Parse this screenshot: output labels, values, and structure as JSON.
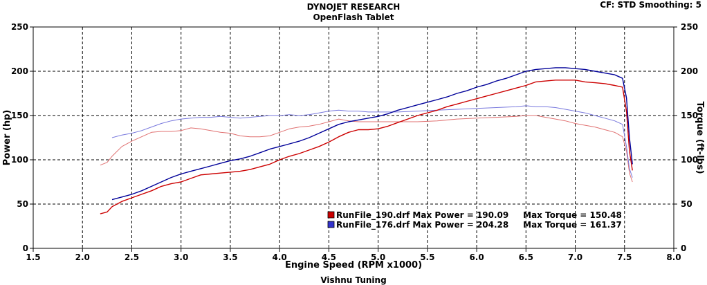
{
  "header": {
    "title": "DYNOJET RESEARCH",
    "subtitle": "OpenFlash Tablet",
    "cf_smoothing": "CF: STD  Smoothing: 5"
  },
  "footer": {
    "text": "Vishnu Tuning"
  },
  "colors": {
    "run190": "#cc0000",
    "run176": "#000099",
    "run190_light": "#e07070",
    "run176_light": "#7777dd"
  },
  "chart_data": {
    "type": "line",
    "xlabel": "Engine Speed (RPM x1000)",
    "ylabel": "Power (hp)",
    "y2label": "Torque (ft-lbs)",
    "xlim": [
      1.5,
      8.0
    ],
    "ylim": [
      0,
      250
    ],
    "y2lim": [
      0,
      250
    ],
    "xticks": [
      "1.5",
      "2.0",
      "2.5",
      "3.0",
      "3.5",
      "4.0",
      "4.5",
      "5.0",
      "5.5",
      "6.0",
      "6.5",
      "7.0",
      "7.5",
      "8.0"
    ],
    "yticks": [
      "0",
      "50",
      "100",
      "150",
      "200",
      "250"
    ],
    "y2ticks": [
      "0",
      "50",
      "100",
      "150",
      "200",
      "250"
    ],
    "grid": true,
    "legend": [
      {
        "text": "RunFile_190.drf Max Power = 190.09     Max Torque = 150.48",
        "color": "#cc0000"
      },
      {
        "text": "RunFile_176.drf Max Power = 204.28     Max Torque = 161.37",
        "color": "#3333cc"
      }
    ],
    "series": [
      {
        "run": "RunFile_190.drf",
        "quantity": "power",
        "color": "#cc0000",
        "width": 1.4,
        "x": [
          2.18,
          2.25,
          2.3,
          2.4,
          2.5,
          2.6,
          2.7,
          2.8,
          2.9,
          3.0,
          3.1,
          3.2,
          3.3,
          3.4,
          3.5,
          3.6,
          3.7,
          3.8,
          3.9,
          4.0,
          4.1,
          4.2,
          4.3,
          4.4,
          4.5,
          4.6,
          4.7,
          4.8,
          4.9,
          5.0,
          5.1,
          5.2,
          5.3,
          5.4,
          5.5,
          5.6,
          5.7,
          5.8,
          5.9,
          6.0,
          6.1,
          6.2,
          6.3,
          6.4,
          6.5,
          6.6,
          6.7,
          6.8,
          6.9,
          7.0,
          7.1,
          7.2,
          7.3,
          7.4,
          7.48,
          7.52,
          7.55,
          7.58
        ],
        "y": [
          39,
          41,
          47,
          53,
          57,
          61,
          65,
          70,
          73,
          75,
          79,
          83,
          84,
          85,
          86,
          87,
          89,
          92,
          95,
          100,
          104,
          107,
          111,
          115,
          120,
          126,
          131,
          134,
          134,
          135,
          138,
          142,
          146,
          150,
          153,
          156,
          160,
          163,
          166,
          169,
          172,
          175,
          178,
          181,
          184,
          188,
          189,
          190,
          190,
          190,
          188,
          187,
          186,
          184,
          182,
          155,
          110,
          88
        ]
      },
      {
        "run": "RunFile_176.drf",
        "quantity": "power",
        "color": "#000099",
        "width": 1.4,
        "x": [
          2.3,
          2.4,
          2.5,
          2.6,
          2.7,
          2.8,
          2.9,
          3.0,
          3.1,
          3.2,
          3.3,
          3.4,
          3.5,
          3.6,
          3.7,
          3.8,
          3.9,
          4.0,
          4.1,
          4.2,
          4.3,
          4.4,
          4.5,
          4.6,
          4.7,
          4.8,
          4.9,
          5.0,
          5.1,
          5.2,
          5.3,
          5.4,
          5.5,
          5.6,
          5.7,
          5.8,
          5.9,
          6.0,
          6.1,
          6.2,
          6.3,
          6.4,
          6.5,
          6.6,
          6.7,
          6.8,
          6.9,
          7.0,
          7.1,
          7.2,
          7.3,
          7.4,
          7.48,
          7.52,
          7.55,
          7.58
        ],
        "y": [
          55,
          58,
          61,
          65,
          70,
          75,
          80,
          84,
          87,
          90,
          93,
          96,
          99,
          101,
          104,
          108,
          112,
          115,
          118,
          121,
          125,
          130,
          135,
          140,
          143,
          145,
          147,
          149,
          152,
          156,
          159,
          162,
          165,
          168,
          171,
          175,
          178,
          182,
          185,
          189,
          192,
          196,
          200,
          202,
          203,
          204,
          204,
          203,
          202,
          200,
          198,
          196,
          192,
          170,
          125,
          95
        ]
      },
      {
        "run": "RunFile_190.drf",
        "quantity": "torque",
        "color": "#e07070",
        "width": 1.0,
        "x": [
          2.18,
          2.25,
          2.3,
          2.4,
          2.5,
          2.6,
          2.7,
          2.8,
          2.9,
          3.0,
          3.1,
          3.2,
          3.3,
          3.4,
          3.5,
          3.6,
          3.7,
          3.8,
          3.9,
          4.0,
          4.1,
          4.2,
          4.3,
          4.4,
          4.5,
          4.6,
          4.7,
          4.8,
          4.9,
          5.0,
          5.2,
          5.4,
          5.6,
          5.8,
          6.0,
          6.2,
          6.4,
          6.5,
          6.6,
          6.7,
          6.8,
          6.9,
          7.0,
          7.1,
          7.2,
          7.3,
          7.4,
          7.48,
          7.52,
          7.55,
          7.58
        ],
        "y": [
          94,
          97,
          104,
          115,
          121,
          126,
          131,
          132,
          132,
          133,
          136,
          135,
          133,
          131,
          130,
          127,
          126,
          126,
          127,
          131,
          135,
          137,
          138,
          140,
          143,
          146,
          144,
          143,
          143,
          143,
          143,
          143,
          144,
          146,
          147,
          148,
          149,
          150,
          150,
          148,
          146,
          144,
          141,
          139,
          137,
          134,
          131,
          126,
          110,
          85,
          75
        ]
      },
      {
        "run": "RunFile_176.drf",
        "quantity": "torque",
        "color": "#7777dd",
        "width": 1.0,
        "x": [
          2.3,
          2.4,
          2.5,
          2.6,
          2.7,
          2.8,
          2.9,
          3.0,
          3.1,
          3.2,
          3.3,
          3.4,
          3.5,
          3.6,
          3.7,
          3.8,
          3.9,
          4.0,
          4.1,
          4.2,
          4.3,
          4.4,
          4.5,
          4.6,
          4.7,
          4.8,
          4.9,
          5.0,
          5.2,
          5.4,
          5.6,
          5.8,
          6.0,
          6.2,
          6.4,
          6.5,
          6.6,
          6.7,
          6.8,
          6.9,
          7.0,
          7.1,
          7.2,
          7.3,
          7.4,
          7.48,
          7.52,
          7.55,
          7.58
        ],
        "y": [
          125,
          128,
          130,
          133,
          137,
          141,
          144,
          146,
          147,
          148,
          148,
          149,
          148,
          147,
          148,
          149,
          150,
          150,
          151,
          150,
          151,
          153,
          155,
          156,
          155,
          155,
          154,
          154,
          154,
          155,
          156,
          157,
          158,
          159,
          160,
          161,
          160,
          160,
          159,
          157,
          155,
          153,
          150,
          147,
          144,
          140,
          115,
          90,
          80
        ]
      }
    ]
  }
}
